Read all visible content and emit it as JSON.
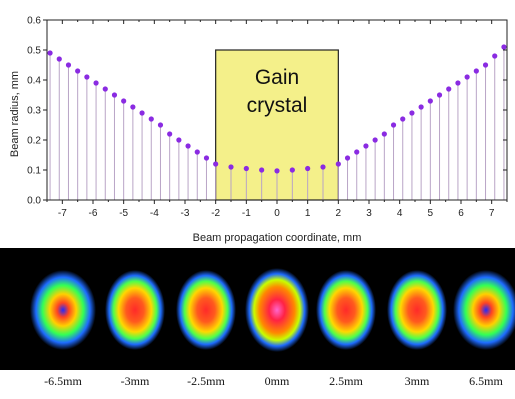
{
  "chart_data": {
    "type": "scatter",
    "title": "",
    "xlabel": "Beam propagation coordinate, mm",
    "ylabel": "Beam radius, mm",
    "xlim": [
      -7.5,
      7.5
    ],
    "ylim": [
      0.0,
      0.6
    ],
    "xticks": [
      -7,
      -6,
      -5,
      -4,
      -3,
      -2,
      -1,
      0,
      1,
      2,
      3,
      4,
      5,
      6,
      7
    ],
    "yticks": [
      0.0,
      0.1,
      0.2,
      0.3,
      0.4,
      0.5,
      0.6
    ],
    "marker_color": "#8a2be2",
    "stem_color": "#b9a4c6",
    "series": [
      {
        "x": [
          -7.4,
          -7.1,
          -6.8,
          -6.5,
          -6.2,
          -5.9,
          -5.6,
          -5.3,
          -5.0,
          -4.7,
          -4.4,
          -4.1,
          -3.8,
          -3.5,
          -3.2,
          -2.9,
          -2.6,
          -2.3,
          -2.0,
          -1.5,
          -1.0,
          -0.5,
          0.0,
          0.5,
          1.0,
          1.5,
          2.0,
          2.3,
          2.6,
          2.9,
          3.2,
          3.5,
          3.8,
          4.1,
          4.4,
          4.7,
          5.0,
          5.3,
          5.6,
          5.9,
          6.2,
          6.5,
          6.8,
          7.1,
          7.4
        ],
        "y": [
          0.49,
          0.47,
          0.45,
          0.43,
          0.41,
          0.39,
          0.37,
          0.35,
          0.33,
          0.31,
          0.29,
          0.27,
          0.25,
          0.22,
          0.2,
          0.18,
          0.16,
          0.14,
          0.12,
          0.11,
          0.105,
          0.1,
          0.097,
          0.1,
          0.105,
          0.11,
          0.12,
          0.14,
          0.16,
          0.18,
          0.2,
          0.22,
          0.25,
          0.27,
          0.29,
          0.31,
          0.33,
          0.35,
          0.37,
          0.39,
          0.41,
          0.43,
          0.45,
          0.48,
          0.51
        ]
      }
    ],
    "annotation": {
      "line1": "Gain",
      "line2": "crystal",
      "x_range": [
        -2,
        2
      ],
      "y_top": 0.5,
      "fill": "#f4f08a",
      "stroke": "#222222"
    },
    "grid": false,
    "legend": "none"
  },
  "profiles": {
    "background": "#000000",
    "images": [
      {
        "label": "-6.5mm",
        "x": -6.5,
        "style": "ring"
      },
      {
        "label": "-3mm",
        "x": -3,
        "style": "solid"
      },
      {
        "label": "-2.5mm",
        "x": -2.5,
        "style": "solid"
      },
      {
        "label": "0mm",
        "x": 0,
        "style": "hot"
      },
      {
        "label": "2.5mm",
        "x": 2.5,
        "style": "solid"
      },
      {
        "label": "3mm",
        "x": 3,
        "style": "solid"
      },
      {
        "label": "6.5mm",
        "x": 6.5,
        "style": "ring"
      }
    ]
  }
}
